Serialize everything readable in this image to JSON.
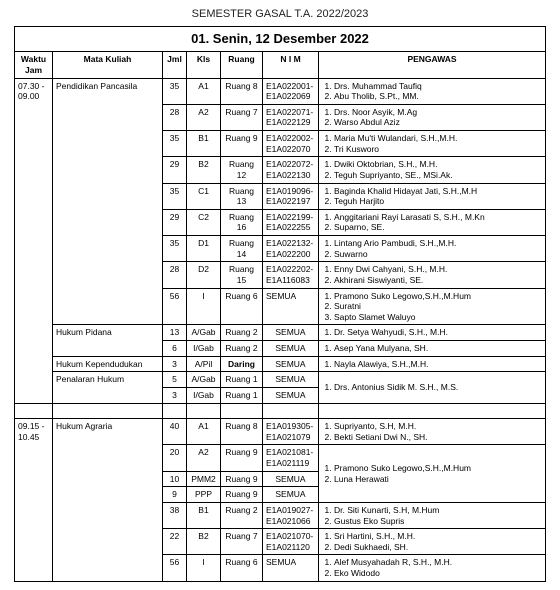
{
  "semester_line": "SEMESTER GASAL T.A. 2022/2023",
  "date_header": "01. Senin, 12 Desember 2022",
  "headers": {
    "waktu": "Waktu Jam",
    "mk": "Mata Kuliah",
    "jml": "Jml",
    "kls": "Kls",
    "ruang": "Ruang",
    "nim": "N I M",
    "pengawas": "PENGAWAS"
  },
  "block1_time": "07.30 - 09.00",
  "block1_mk": "Pendidikan Pancasila",
  "rows1": [
    {
      "jml": "35",
      "kls": "A1",
      "ruang": "Ruang 8",
      "nim": "E1A022001-E1A022069",
      "p": [
        "Drs. Muhammad Taufiq",
        "Abu Tholib, S.Pt., MM."
      ]
    },
    {
      "jml": "28",
      "kls": "A2",
      "ruang": "Ruang 7",
      "nim": "E1A022071-E1A022129",
      "p": [
        "Drs. Noor Asyik, M.Ag",
        "Warso Abdul Aziz"
      ]
    },
    {
      "jml": "35",
      "kls": "B1",
      "ruang": "Ruang 9",
      "nim": "E1A022002-E1A022070",
      "p": [
        "Maria Mu'ti Wulandari, S.H.,M.H.",
        "Tri Kusworo"
      ]
    },
    {
      "jml": "29",
      "kls": "B2",
      "ruang": "Ruang 12",
      "nim": "E1A022072-E1A022130",
      "p": [
        "Dwiki Oktobrian, S.H., M.H.",
        "Teguh Supriyanto, SE., MSi.Ak."
      ]
    },
    {
      "jml": "35",
      "kls": "C1",
      "ruang": "Ruang 13",
      "nim": "E1A019096-E1A022197",
      "p": [
        "Baginda Khalid Hidayat Jati, S.H.,M.H",
        "Teguh Harjito"
      ]
    },
    {
      "jml": "29",
      "kls": "C2",
      "ruang": "Ruang 16",
      "nim": "E1A022199-E1A022255",
      "p": [
        "Anggitariani Rayi Larasati  S, S.H., M.Kn",
        "Suparno, SE."
      ]
    },
    {
      "jml": "35",
      "kls": "D1",
      "ruang": "Ruang 14",
      "nim": "E1A022132-E1A022200",
      "p": [
        "Lintang Ario Pambudi, S.H.,M.H.",
        "Suwarno"
      ]
    },
    {
      "jml": "28",
      "kls": "D2",
      "ruang": "Ruang 15",
      "nim": "E1A022202-E1A116083",
      "p": [
        "Enny Dwi Cahyani, S.H., M.H.",
        "Akhirani Siswiyanti, SE."
      ]
    },
    {
      "jml": "56",
      "kls": "I",
      "ruang": "Ruang 6",
      "nim": "SEMUA",
      "p": [
        "Pramono Suko Legowo,S.H.,M.Hum",
        "Suratni",
        "Sapto Slamet Waluyo"
      ]
    }
  ],
  "hp_mk": "Hukum Pidana",
  "hp_rows": [
    {
      "jml": "13",
      "kls": "A/Gab",
      "ruang": "Ruang 2",
      "nim": "SEMUA",
      "p": [
        "Dr. Setya Wahyudi, S.H., M.H."
      ]
    },
    {
      "jml": "6",
      "kls": "I/Gab",
      "ruang": "Ruang 2",
      "nim": "SEMUA",
      "p": [
        "Asep Yana Mulyana, SH."
      ]
    }
  ],
  "hk_mk": "Hukum Kependudukan",
  "hk_row": {
    "jml": "3",
    "kls": "A/Pil",
    "ruang": "Daring",
    "nim": "SEMUA",
    "p": [
      "Nayla Alawiya, S.H.,M.H."
    ]
  },
  "ph_mk": "Penalaran Hukum",
  "ph_rows": [
    {
      "jml": "5",
      "kls": "A/Gab",
      "ruang": "Ruang 1",
      "nim": "SEMUA"
    },
    {
      "jml": "3",
      "kls": "I/Gab",
      "ruang": "Ruang 1",
      "nim": "SEMUA"
    }
  ],
  "ph_pengawas": "Drs. Antonius Sidik M. S.H., M.S.",
  "block2_time": "09.15 - 10.45",
  "block2_mk": "Hukum Agraria",
  "rows2": [
    {
      "jml": "40",
      "kls": "A1",
      "ruang": "Ruang 8",
      "nim": "E1A019305-E1A021079",
      "p": [
        "Supriyanto, S.H, M.H.",
        "Bekti Setiani Dwi N., SH."
      ]
    },
    {
      "jml": "20",
      "kls": "A2",
      "ruang": "Ruang 9",
      "nim": "E1A021081-E1A021119"
    }
  ],
  "rows2b": [
    {
      "jml": "10",
      "kls": "PMM2",
      "ruang": "Ruang 9",
      "nim": "SEMUA"
    },
    {
      "jml": "9",
      "kls": "PPP",
      "ruang": "Ruang 9",
      "nim": "SEMUA"
    }
  ],
  "rows2b_pengawas": [
    "Pramono Suko Legowo,S.H.,M.Hum",
    "Luna Herawati"
  ],
  "rows2c": [
    {
      "jml": "38",
      "kls": "B1",
      "ruang": "Ruang 2",
      "nim": "E1A019027-E1A021066",
      "p": [
        "Dr. Siti Kunarti, S.H, M.Hum",
        "Gustus Eko Supris"
      ]
    },
    {
      "jml": "22",
      "kls": "B2",
      "ruang": "Ruang 7",
      "nim": "E1A021070-E1A021120",
      "p": [
        "Sri Hartini, S.H., M.H.",
        "Dedi Sukhaedi, SH."
      ]
    },
    {
      "jml": "56",
      "kls": "I",
      "ruang": "Ruang 6",
      "nim": "SEMUA",
      "p": [
        "Alef Musyahadah R, S.H., M.H.",
        "Eko Widodo"
      ]
    }
  ]
}
